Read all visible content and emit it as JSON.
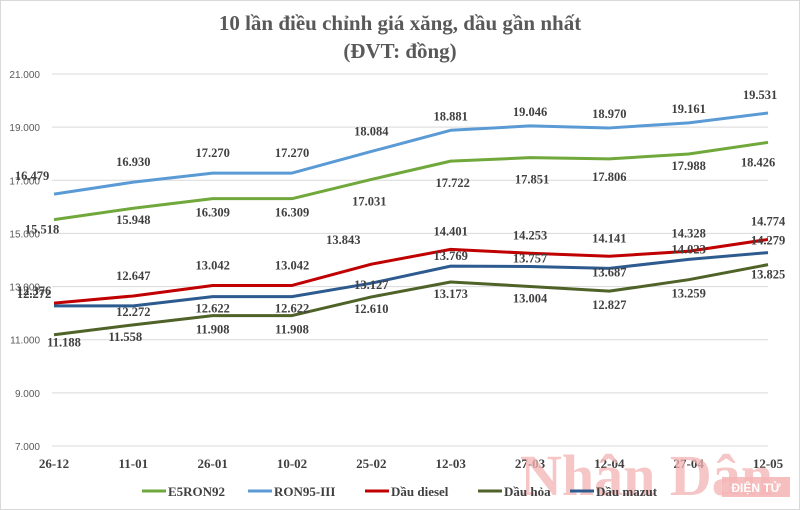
{
  "title": {
    "line1": "10 lần điều chỉnh giá xăng, dầu gần nhất",
    "line2": "(ĐVT: đồng)"
  },
  "watermark": {
    "name": "Nhân Dân",
    "tag": "ĐIỆN TỬ"
  },
  "chart_data": {
    "type": "line",
    "title": "10 lần điều chỉnh giá xăng, dầu gần nhất (ĐVT: đồng)",
    "xlabel": "",
    "ylabel": "",
    "ylim": [
      7000,
      21000
    ],
    "yticks": [
      "7.000",
      "9.000",
      "11.000",
      "13.000",
      "15.000",
      "17.000",
      "19.000",
      "21.000"
    ],
    "grid": true,
    "legend_position": "bottom",
    "categories": [
      "26-12",
      "11-01",
      "26-01",
      "10-02",
      "25-02",
      "12-03",
      "27-03",
      "12-04",
      "27-04",
      "12-05"
    ],
    "series": [
      {
        "name": "E5RON92",
        "color": "#70a83c",
        "values": [
          15518,
          15948,
          16309,
          16309,
          17031,
          17722,
          17851,
          17806,
          17988,
          18426
        ]
      },
      {
        "name": "RON95-III",
        "color": "#5b9bd5",
        "values": [
          16479,
          16930,
          17270,
          17270,
          18084,
          18881,
          19046,
          18970,
          19161,
          19531
        ]
      },
      {
        "name": "Dầu diesel",
        "color": "#c00000",
        "values": [
          12376,
          12647,
          13042,
          13042,
          13843,
          14401,
          14253,
          14141,
          14328,
          14774
        ]
      },
      {
        "name": "Dầu hỏa",
        "color": "#4f6228",
        "values": [
          11188,
          11558,
          11908,
          11908,
          12610,
          13173,
          13004,
          12827,
          13259,
          13825
        ]
      },
      {
        "name": "Dầu mazut",
        "color": "#2e5b8f",
        "values": [
          12272,
          12272,
          12622,
          12622,
          13127,
          13769,
          13757,
          13687,
          14023,
          14279
        ]
      }
    ],
    "data_labels": {
      "E5RON92": [
        "15.518",
        "15.948",
        "16.309",
        "16.309",
        "17.031",
        "17.722",
        "17.851",
        "17.806",
        "17.988",
        "18.426"
      ],
      "RON95-III": [
        "16.479",
        "16.930",
        "17.270",
        "17.270",
        "18.084",
        "18.881",
        "19.046",
        "18.970",
        "19.161",
        "19.531"
      ],
      "Dầu diesel": [
        "12.376",
        "12.647",
        "13.042",
        "13.042",
        "13.843",
        "14.401",
        "14.253",
        "14.141",
        "14.328",
        "14.774"
      ],
      "Dầu hỏa": [
        "11.188",
        "11.558",
        "11.908",
        "11.908",
        "12.610",
        "13.173",
        "13.004",
        "12.827",
        "13.259",
        "13.825"
      ],
      "Dầu mazut": [
        "12.272",
        "12.272",
        "12.622",
        "12.622",
        "13.127",
        "13.769",
        "13.757",
        "13.687",
        "14.023",
        "14.279"
      ]
    }
  }
}
